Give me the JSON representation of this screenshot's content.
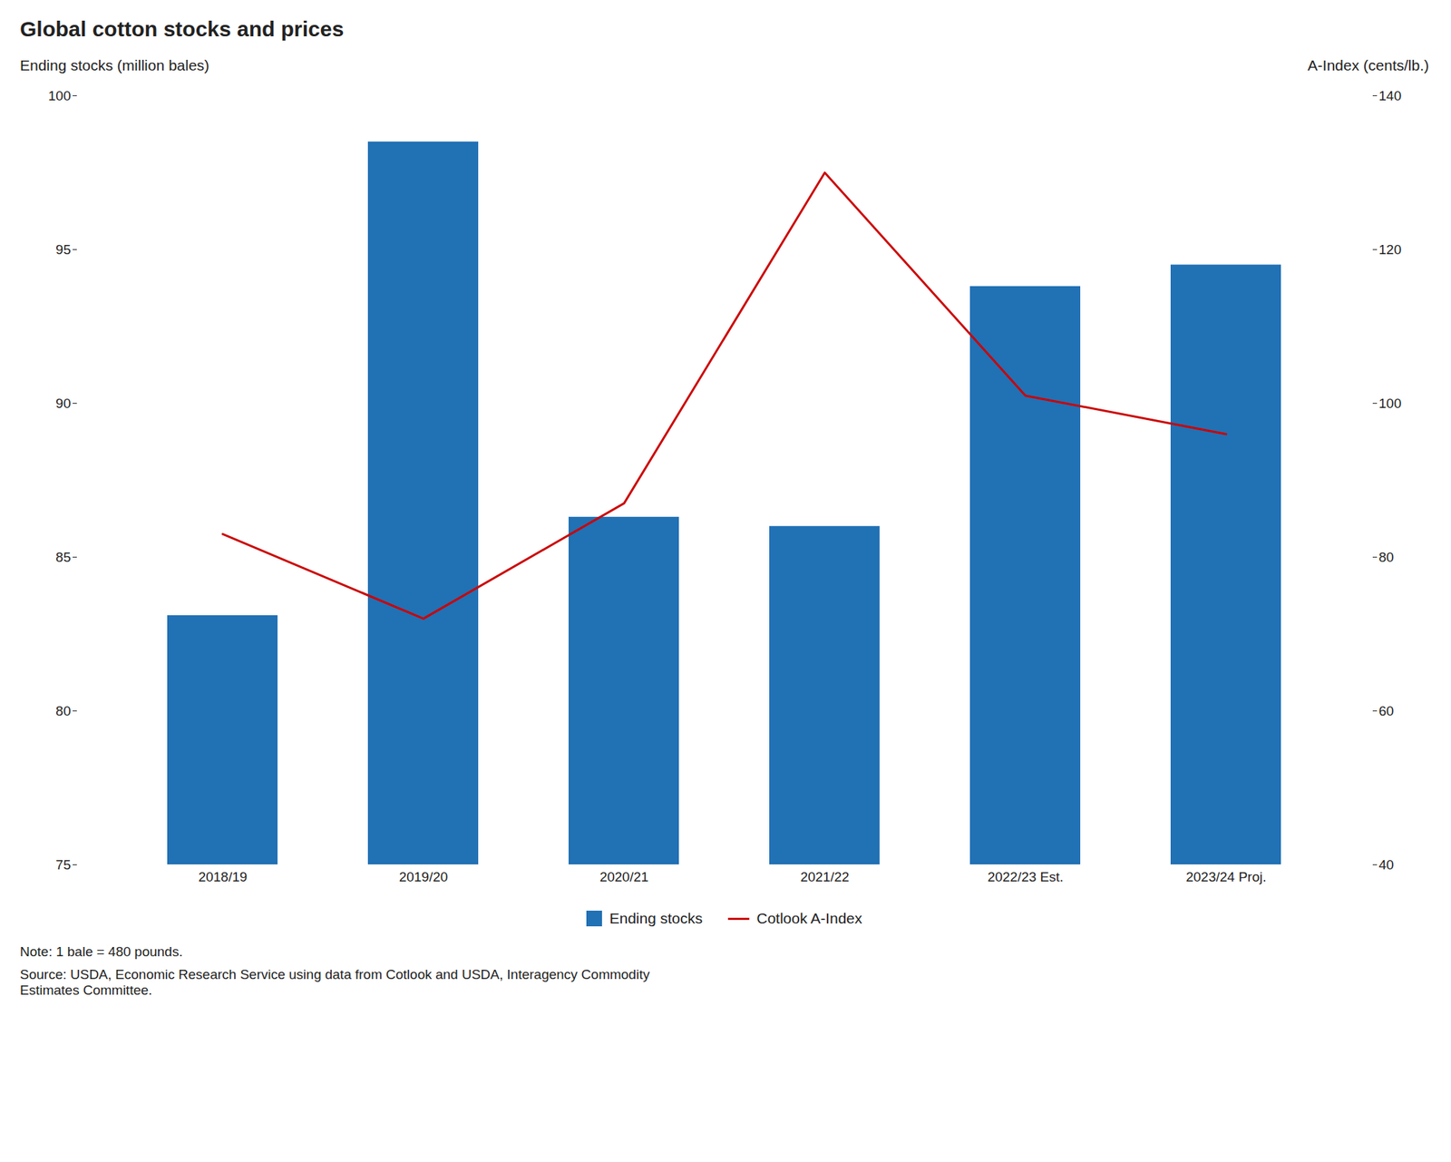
{
  "chart_data": {
    "type": "bar",
    "title": "Global cotton stocks and prices",
    "ylabel": "Ending stocks (million bales)",
    "y2label": "A-Index (cents/lb.)",
    "categories": [
      "2018/19",
      "2019/20",
      "2020/21",
      "2021/22",
      "2022/23 Est.",
      "2023/24 Proj."
    ],
    "series": [
      {
        "name": "Ending stocks",
        "type": "bar",
        "color": "#2171b5",
        "values": [
          83.1,
          98.5,
          86.3,
          86.0,
          93.8,
          94.5
        ]
      },
      {
        "name": "Cotlook A-Index",
        "type": "line",
        "axis": "y2",
        "color": "#cc0000",
        "values": [
          83.0,
          72.0,
          87.0,
          130.0,
          101.0,
          96.0
        ]
      }
    ],
    "ylim": [
      75,
      100
    ],
    "yticks": [
      75,
      80,
      85,
      90,
      95,
      100
    ],
    "y2lim": [
      40,
      140
    ],
    "y2ticks": [
      40,
      60,
      80,
      100,
      120,
      140
    ],
    "grid": false,
    "legend": "bottom",
    "annotations": [
      "Note: 1 bale = 480 pounds.",
      "Source: USDA, Economic Research Service using data from Cotlook and USDA, Interagency Commodity\nEstimates Committee."
    ]
  }
}
